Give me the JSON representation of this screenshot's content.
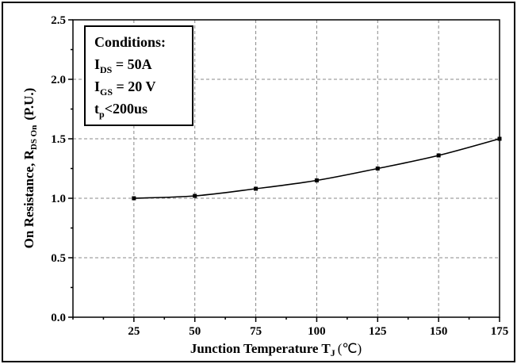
{
  "chart_data": {
    "type": "line",
    "xlabel": "Junction Temperature T",
    "xlabel_sub": "J",
    "xlabel_unit": "(℃)",
    "ylabel": "On Resistance, R",
    "ylabel_sub": "DS On",
    "ylabel_unit": "(P.U.)",
    "xlim": [
      0,
      175
    ],
    "ylim": [
      0.0,
      2.5
    ],
    "xticks": [
      25,
      50,
      75,
      100,
      125,
      150,
      175
    ],
    "yticks": [
      0.0,
      0.5,
      1.0,
      1.5,
      2.0,
      2.5
    ],
    "grid": true,
    "x": [
      25,
      50,
      75,
      100,
      125,
      150,
      175
    ],
    "y": [
      1.0,
      1.02,
      1.08,
      1.15,
      1.25,
      1.36,
      1.5
    ],
    "annotation": {
      "title": "Conditions:",
      "lines": [
        {
          "main": "I",
          "sub": "DS",
          "rest": " = 50A"
        },
        {
          "main": "I",
          "sub": "GS",
          "rest": " = 20 V"
        },
        {
          "main": "t",
          "sub": "p",
          "rest": "<200us"
        }
      ]
    },
    "colors": {
      "line": "#000000",
      "grid": "#888888"
    }
  }
}
